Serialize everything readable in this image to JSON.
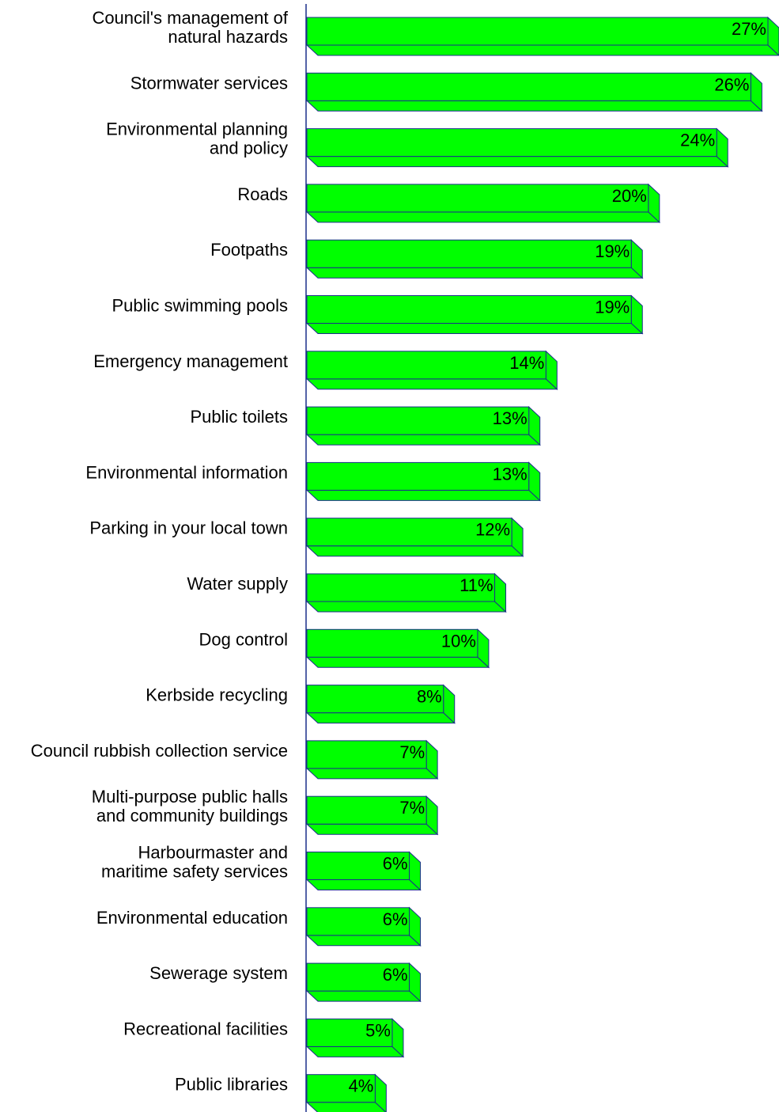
{
  "chart_data": {
    "type": "bar",
    "orientation": "horizontal",
    "style": "3d",
    "categories": [
      [
        "Council's management of",
        "natural hazards"
      ],
      [
        "Stormwater services"
      ],
      [
        "Environmental planning",
        "and policy"
      ],
      [
        "Roads"
      ],
      [
        "Footpaths"
      ],
      [
        "Public swimming pools"
      ],
      [
        "Emergency management"
      ],
      [
        "Public toilets"
      ],
      [
        "Environmental information"
      ],
      [
        "Parking in your local town"
      ],
      [
        "Water supply"
      ],
      [
        "Dog control"
      ],
      [
        "Kerbside recycling"
      ],
      [
        "Council rubbish collection service"
      ],
      [
        "Multi-purpose public halls",
        "and community buildings"
      ],
      [
        "Harbourmaster and",
        "maritime safety services"
      ],
      [
        "Environmental education"
      ],
      [
        "Sewerage system"
      ],
      [
        "Recreational facilities"
      ],
      [
        "Public libraries"
      ]
    ],
    "values": [
      27,
      26,
      24,
      20,
      19,
      19,
      14,
      13,
      13,
      12,
      11,
      10,
      8,
      7,
      7,
      6,
      6,
      6,
      5,
      4
    ],
    "value_labels": [
      "27%",
      "26%",
      "24%",
      "20%",
      "19%",
      "19%",
      "14%",
      "13%",
      "13%",
      "12%",
      "11%",
      "10%",
      "8%",
      "7%",
      "7%",
      "6%",
      "6%",
      "6%",
      "5%",
      "4%"
    ],
    "xlim": [
      0,
      27
    ],
    "grid": false,
    "legend": "none",
    "colors": {
      "bar": "#00ff00",
      "edge": "#1a2f8a",
      "axis": "#1a2f8a"
    }
  }
}
